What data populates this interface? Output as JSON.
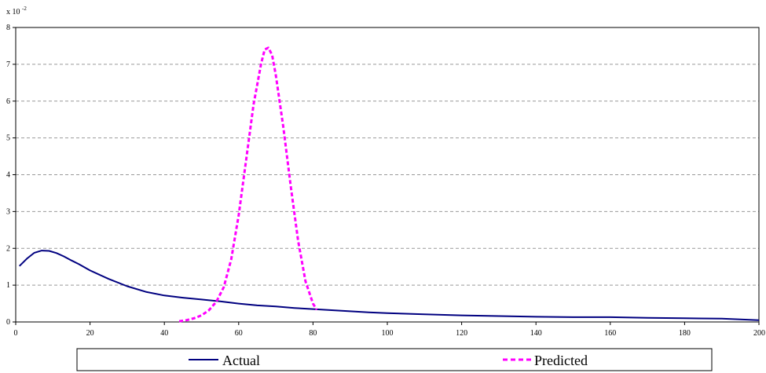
{
  "chart_data": {
    "type": "line",
    "title": "",
    "xlabel": "",
    "ylabel": "",
    "y_multiplier_label": {
      "base": "x 10",
      "exponent": "-2"
    },
    "xlim": [
      0,
      200
    ],
    "ylim": [
      0,
      8
    ],
    "x_ticks": [
      0,
      20,
      40,
      60,
      80,
      100,
      120,
      140,
      160,
      180,
      200
    ],
    "y_ticks": [
      0,
      1,
      2,
      3,
      4,
      5,
      6,
      7,
      8
    ],
    "grid": "horizontal dashed",
    "legend_position": "bottom",
    "series": [
      {
        "name": "Actual",
        "color": "#000080",
        "style": "solid",
        "x": [
          1,
          3,
          5,
          7,
          9,
          11,
          13,
          15,
          17,
          20,
          25,
          30,
          35,
          40,
          45,
          50,
          55,
          60,
          65,
          70,
          75,
          80,
          85,
          90,
          95,
          100,
          110,
          120,
          130,
          140,
          150,
          160,
          170,
          180,
          190,
          195,
          200
        ],
        "y": [
          1.52,
          1.72,
          1.88,
          1.94,
          1.93,
          1.87,
          1.78,
          1.67,
          1.57,
          1.4,
          1.17,
          0.97,
          0.82,
          0.72,
          0.66,
          0.61,
          0.56,
          0.5,
          0.45,
          0.42,
          0.38,
          0.35,
          0.32,
          0.29,
          0.26,
          0.24,
          0.21,
          0.18,
          0.16,
          0.14,
          0.13,
          0.13,
          0.11,
          0.1,
          0.09,
          0.07,
          0.05
        ]
      },
      {
        "name": "Predicted",
        "color": "#FF00FF",
        "style": "dashed",
        "x": [
          44,
          46,
          48,
          50,
          52,
          54,
          56,
          58,
          60,
          62,
          64,
          66,
          67,
          68,
          69,
          70,
          72,
          74,
          76,
          78,
          80,
          81
        ],
        "y": [
          0.02,
          0.05,
          0.1,
          0.18,
          0.32,
          0.55,
          0.95,
          1.7,
          2.9,
          4.4,
          5.9,
          7.0,
          7.4,
          7.45,
          7.25,
          6.7,
          5.3,
          3.7,
          2.2,
          1.1,
          0.5,
          0.33
        ]
      }
    ]
  }
}
